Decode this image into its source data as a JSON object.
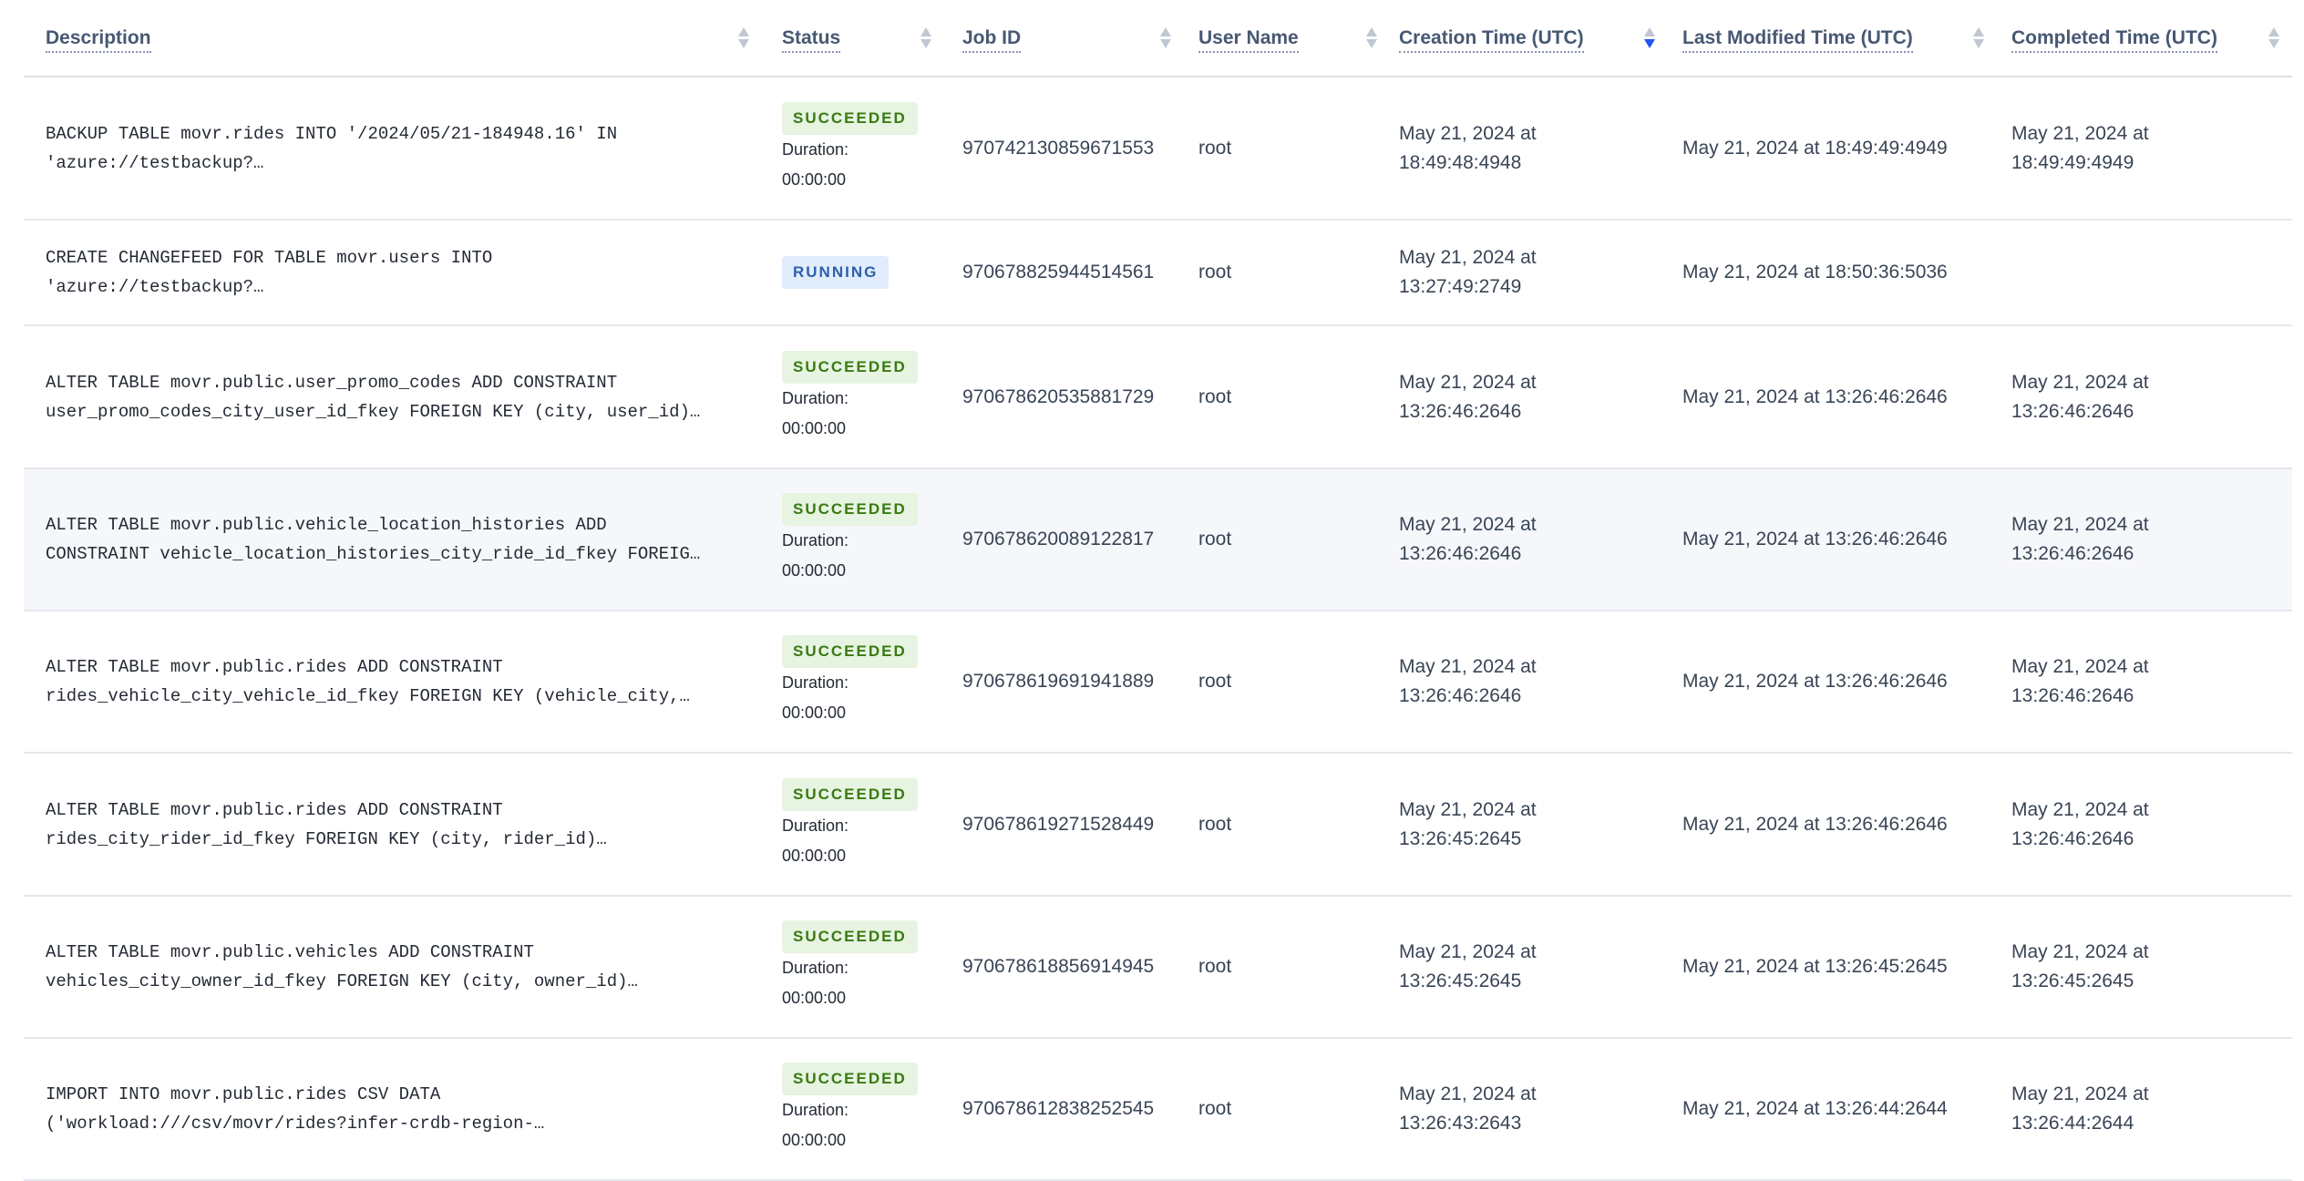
{
  "columns": [
    {
      "label": "Description"
    },
    {
      "label": "Status"
    },
    {
      "label": "Job ID"
    },
    {
      "label": "User Name"
    },
    {
      "label": "Creation Time (UTC)",
      "sorted": "descending"
    },
    {
      "label": "Last Modified Time (UTC)"
    },
    {
      "label": "Completed Time (UTC)"
    }
  ],
  "colors": {
    "succeeded": "#3a7a12",
    "running": "#2e5faa",
    "sort_active": "#2355f5"
  },
  "duration_label": "Duration:",
  "rows": [
    {
      "desc1": "BACKUP TABLE movr.rides INTO '/2024/05/21-184948.16' IN",
      "desc2": "'azure://testbackup?…",
      "status": "SUCCEEDED",
      "duration": "00:00:00",
      "job_id": "970742130859671553",
      "user": "root",
      "created1": "May 21, 2024 at",
      "created2": "18:49:48:4948",
      "modified": "May 21, 2024 at 18:49:49:4949",
      "completed1": "May 21, 2024 at",
      "completed2": "18:49:49:4949"
    },
    {
      "desc1": "CREATE CHANGEFEED FOR TABLE movr.users INTO",
      "desc2": "'azure://testbackup?…",
      "status": "RUNNING",
      "duration": "",
      "job_id": "970678825944514561",
      "user": "root",
      "created1": "May 21, 2024 at",
      "created2": "13:27:49:2749",
      "modified": "May 21, 2024 at 18:50:36:5036",
      "completed1": "",
      "completed2": ""
    },
    {
      "desc1": "ALTER TABLE movr.public.user_promo_codes ADD CONSTRAINT",
      "desc2": "user_promo_codes_city_user_id_fkey FOREIGN KEY (city, user_id)…",
      "status": "SUCCEEDED",
      "duration": "00:00:00",
      "job_id": "970678620535881729",
      "user": "root",
      "created1": "May 21, 2024 at",
      "created2": "13:26:46:2646",
      "modified": "May 21, 2024 at 13:26:46:2646",
      "completed1": "May 21, 2024 at",
      "completed2": "13:26:46:2646"
    },
    {
      "desc1": "ALTER TABLE movr.public.vehicle_location_histories ADD",
      "desc2": "CONSTRAINT vehicle_location_histories_city_ride_id_fkey FOREIG…",
      "status": "SUCCEEDED",
      "duration": "00:00:00",
      "job_id": "970678620089122817",
      "user": "root",
      "created1": "May 21, 2024 at",
      "created2": "13:26:46:2646",
      "modified": "May 21, 2024 at 13:26:46:2646",
      "completed1": "May 21, 2024 at",
      "completed2": "13:26:46:2646"
    },
    {
      "desc1": "ALTER TABLE movr.public.rides ADD CONSTRAINT",
      "desc2": "rides_vehicle_city_vehicle_id_fkey FOREIGN KEY (vehicle_city,…",
      "status": "SUCCEEDED",
      "duration": "00:00:00",
      "job_id": "970678619691941889",
      "user": "root",
      "created1": "May 21, 2024 at",
      "created2": "13:26:46:2646",
      "modified": "May 21, 2024 at 13:26:46:2646",
      "completed1": "May 21, 2024 at",
      "completed2": "13:26:46:2646"
    },
    {
      "desc1": "ALTER TABLE movr.public.rides ADD CONSTRAINT",
      "desc2": "rides_city_rider_id_fkey FOREIGN KEY (city, rider_id)…",
      "status": "SUCCEEDED",
      "duration": "00:00:00",
      "job_id": "970678619271528449",
      "user": "root",
      "created1": "May 21, 2024 at",
      "created2": "13:26:45:2645",
      "modified": "May 21, 2024 at 13:26:46:2646",
      "completed1": "May 21, 2024 at",
      "completed2": "13:26:46:2646"
    },
    {
      "desc1": "ALTER TABLE movr.public.vehicles ADD CONSTRAINT",
      "desc2": "vehicles_city_owner_id_fkey FOREIGN KEY (city, owner_id)…",
      "status": "SUCCEEDED",
      "duration": "00:00:00",
      "job_id": "970678618856914945",
      "user": "root",
      "created1": "May 21, 2024 at",
      "created2": "13:26:45:2645",
      "modified": "May 21, 2024 at 13:26:45:2645",
      "completed1": "May 21, 2024 at",
      "completed2": "13:26:45:2645"
    },
    {
      "desc1": "IMPORT INTO movr.public.rides CSV DATA",
      "desc2": "('workload:///csv/movr/rides?infer-crdb-region-…",
      "status": "SUCCEEDED",
      "duration": "00:00:00",
      "job_id": "970678612838252545",
      "user": "root",
      "created1": "May 21, 2024 at",
      "created2": "13:26:43:2643",
      "modified": "May 21, 2024 at 13:26:44:2644",
      "completed1": "May 21, 2024 at",
      "completed2": "13:26:44:2644"
    }
  ]
}
